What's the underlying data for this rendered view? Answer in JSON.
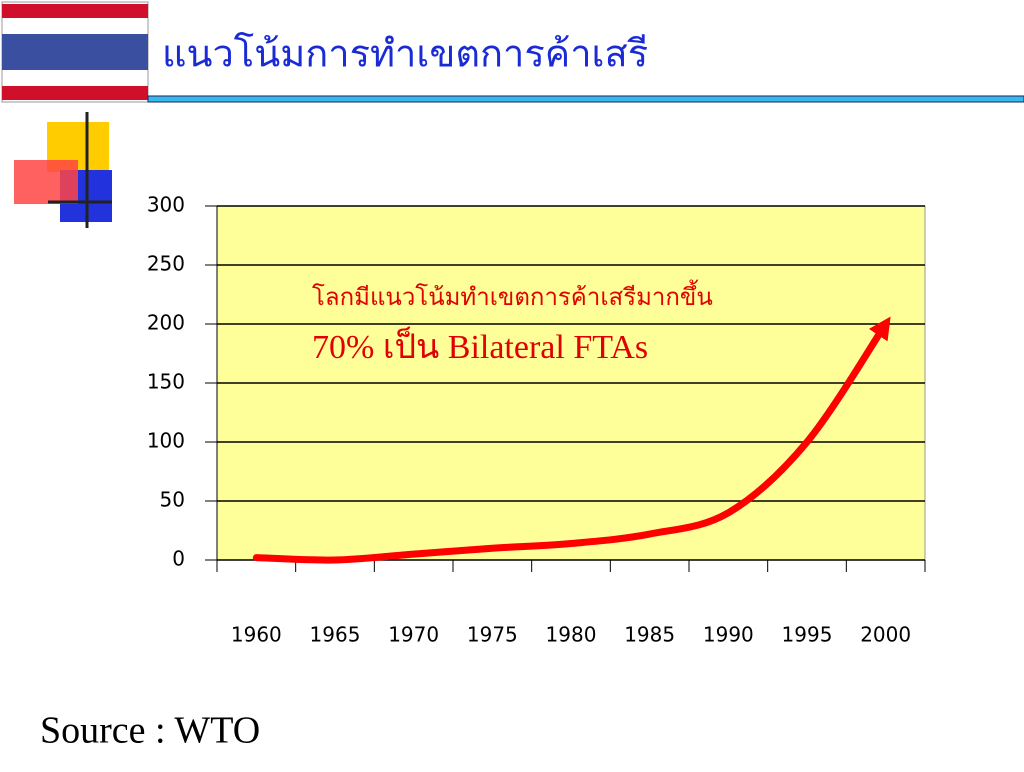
{
  "title": "แนวโน้มการทำเขตการค้าเสรี",
  "source": "Source : WTO",
  "chart_data": {
    "type": "line",
    "annotations": [
      "โลกมีแนวโน้มทำเขตการค้าเสรีมากขึ้น",
      "70% เป็น Bilateral FTAs"
    ],
    "categories": [
      "1960",
      "1965",
      "1970",
      "1975",
      "1980",
      "1985",
      "1990",
      "1995",
      "2000"
    ],
    "values": [
      2,
      0,
      5,
      10,
      14,
      22,
      40,
      100,
      200
    ],
    "color": "#ff0000",
    "background": "#ffff99",
    "ylim": [
      0,
      300
    ],
    "yticks": [
      0,
      50,
      100,
      150,
      200,
      250,
      300
    ],
    "grid": true
  }
}
